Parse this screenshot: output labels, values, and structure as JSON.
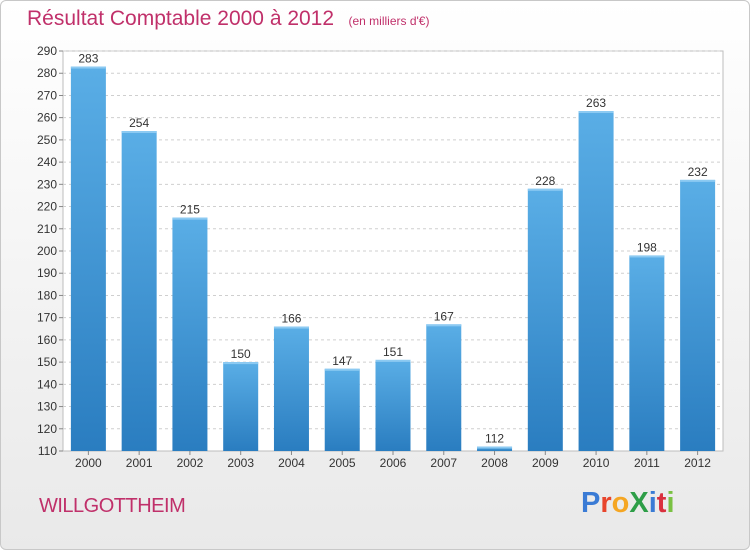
{
  "title": "Résultat Comptable 2000 à 2012",
  "subtitle": "(en milliers d'€)",
  "commune": "WILLGOTTHEIM",
  "logo": {
    "text": "ProXiti",
    "colors": [
      "#3a7bd5",
      "#e8452c",
      "#f5a623",
      "#2e9e48",
      "#3a7bd5",
      "#d9303e",
      "#7ac143"
    ]
  },
  "colors": {
    "title": "#c0306a",
    "bar_light": "#5aaee6",
    "bar_dark": "#2a7dc0",
    "grid": "#cfcfcf"
  },
  "chart_data": {
    "type": "bar",
    "categories": [
      "2000",
      "2001",
      "2002",
      "2003",
      "2004",
      "2005",
      "2006",
      "2007",
      "2008",
      "2009",
      "2010",
      "2011",
      "2012"
    ],
    "values": [
      283,
      254,
      215,
      150,
      166,
      147,
      151,
      167,
      112,
      228,
      263,
      198,
      232
    ],
    "ylim": [
      110,
      290
    ],
    "ytick_step": 10,
    "grid": true
  }
}
